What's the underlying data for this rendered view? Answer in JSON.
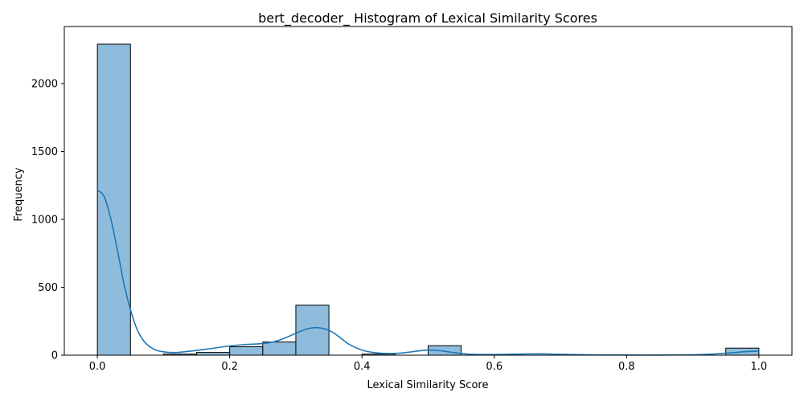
{
  "chart_data": {
    "type": "bar",
    "title": "bert_decoder_ Histogram of Lexical Similarity Scores",
    "xlabel": "Lexical Similarity Score",
    "ylabel": "Frequency",
    "xlim": [
      -0.05,
      1.05
    ],
    "ylim": [
      0,
      2420
    ],
    "x_ticks": [
      0.0,
      0.2,
      0.4,
      0.6,
      0.8,
      1.0
    ],
    "x_tick_labels": [
      "0.0",
      "0.2",
      "0.4",
      "0.6",
      "0.8",
      "1.0"
    ],
    "y_ticks": [
      0,
      500,
      1000,
      1500,
      2000
    ],
    "y_tick_labels": [
      "0",
      "500",
      "1000",
      "1500",
      "2000"
    ],
    "grid": false,
    "bar_color": "#8fbcdd",
    "bar_edge_color": "#000000",
    "kde_color": "#1f77b4",
    "bins": [
      {
        "start": 0.0,
        "end": 0.05,
        "count": 2290
      },
      {
        "start": 0.05,
        "end": 0.1,
        "count": 0
      },
      {
        "start": 0.1,
        "end": 0.15,
        "count": 8
      },
      {
        "start": 0.15,
        "end": 0.2,
        "count": 20
      },
      {
        "start": 0.2,
        "end": 0.25,
        "count": 62
      },
      {
        "start": 0.25,
        "end": 0.3,
        "count": 97
      },
      {
        "start": 0.3,
        "end": 0.35,
        "count": 368
      },
      {
        "start": 0.35,
        "end": 0.4,
        "count": 0
      },
      {
        "start": 0.4,
        "end": 0.45,
        "count": 8
      },
      {
        "start": 0.45,
        "end": 0.5,
        "count": 0
      },
      {
        "start": 0.5,
        "end": 0.55,
        "count": 70
      },
      {
        "start": 0.55,
        "end": 0.6,
        "count": 0
      },
      {
        "start": 0.6,
        "end": 0.65,
        "count": 0
      },
      {
        "start": 0.65,
        "end": 0.7,
        "count": 0
      },
      {
        "start": 0.7,
        "end": 0.75,
        "count": 0
      },
      {
        "start": 0.75,
        "end": 0.8,
        "count": 0
      },
      {
        "start": 0.8,
        "end": 0.85,
        "count": 0
      },
      {
        "start": 0.85,
        "end": 0.9,
        "count": 0
      },
      {
        "start": 0.9,
        "end": 0.95,
        "count": 0
      },
      {
        "start": 0.95,
        "end": 1.0,
        "count": 52
      }
    ],
    "kde": {
      "x": [
        0.0,
        0.01,
        0.02,
        0.03,
        0.04,
        0.05,
        0.06,
        0.07,
        0.08,
        0.09,
        0.1,
        0.11,
        0.12,
        0.13,
        0.15,
        0.17,
        0.2,
        0.22,
        0.25,
        0.27,
        0.29,
        0.31,
        0.32,
        0.33,
        0.34,
        0.35,
        0.36,
        0.37,
        0.38,
        0.4,
        0.42,
        0.44,
        0.46,
        0.48,
        0.5,
        0.52,
        0.54,
        0.56,
        0.58,
        0.6,
        0.64,
        0.67,
        0.7,
        0.75,
        0.8,
        0.85,
        0.9,
        0.93,
        0.96,
        0.98,
        1.0
      ],
      "y": [
        1215,
        1170,
        1010,
        780,
        530,
        335,
        190,
        105,
        60,
        35,
        25,
        20,
        20,
        24,
        35,
        48,
        68,
        77,
        86,
        103,
        140,
        182,
        197,
        203,
        198,
        183,
        155,
        118,
        82,
        38,
        18,
        12,
        16,
        28,
        38,
        32,
        18,
        8,
        5,
        5,
        8,
        10,
        6,
        2,
        1,
        1,
        3,
        8,
        18,
        26,
        30
      ]
    }
  }
}
